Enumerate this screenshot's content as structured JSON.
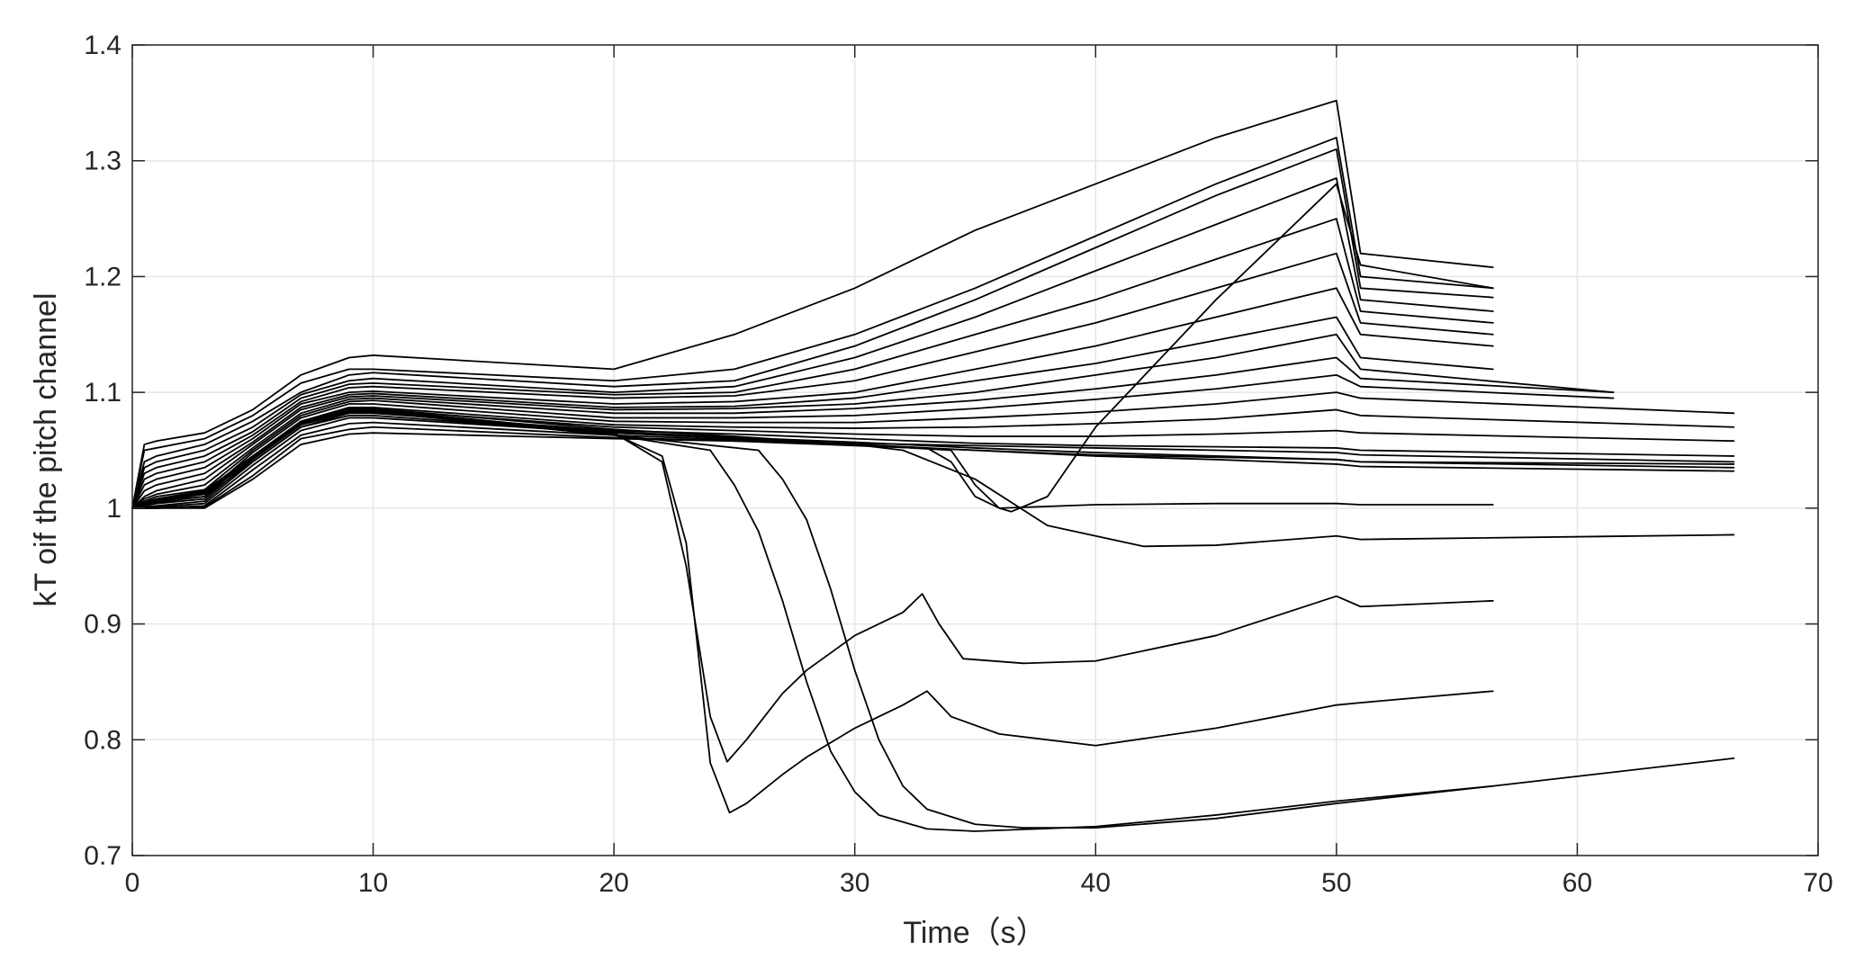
{
  "chart_data": {
    "type": "line",
    "title": "",
    "xlabel": "Time（s）",
    "ylabel": "kT oif the pitch channel",
    "xlim": [
      0,
      70
    ],
    "ylim": [
      0.7,
      1.4
    ],
    "x_ticks": [
      0,
      10,
      20,
      30,
      40,
      50,
      60,
      70
    ],
    "y_ticks": [
      0.7,
      0.8,
      0.9,
      1.0,
      1.1,
      1.2,
      1.3,
      1.4
    ],
    "x_tick_labels": [
      "0",
      "10",
      "20",
      "30",
      "40",
      "50",
      "60",
      "70"
    ],
    "y_tick_labels": [
      "0.7",
      "0.8",
      "0.9",
      "1",
      "1.1",
      "1.2",
      "1.3",
      "1.4"
    ],
    "grid": true,
    "line_color": "#000000",
    "grid_color": "#e6e6e6",
    "axis_color": "#262626",
    "series": [
      {
        "x": [
          0,
          0.5,
          1,
          3,
          5,
          7,
          9,
          10,
          20,
          25,
          30,
          35,
          40,
          45,
          50,
          51,
          56.5
        ],
        "y": [
          1.0,
          1.055,
          1.058,
          1.065,
          1.085,
          1.115,
          1.13,
          1.132,
          1.12,
          1.15,
          1.19,
          1.24,
          1.28,
          1.32,
          1.352,
          1.22,
          1.208
        ]
      },
      {
        "x": [
          0,
          0.5,
          1,
          3,
          5,
          7,
          9,
          10,
          20,
          25,
          30,
          35,
          40,
          45,
          50,
          51,
          56.5
        ],
        "y": [
          1.0,
          1.05,
          1.052,
          1.06,
          1.08,
          1.108,
          1.12,
          1.12,
          1.11,
          1.12,
          1.15,
          1.19,
          1.235,
          1.28,
          1.32,
          1.2,
          1.19
        ]
      },
      {
        "x": [
          0,
          0.5,
          1,
          3,
          5,
          7,
          9,
          10,
          20,
          25,
          30,
          35,
          40,
          45,
          50,
          51,
          56.5
        ],
        "y": [
          1.0,
          1.04,
          1.045,
          1.055,
          1.075,
          1.1,
          1.115,
          1.117,
          1.105,
          1.11,
          1.14,
          1.18,
          1.225,
          1.27,
          1.31,
          1.19,
          1.182
        ]
      },
      {
        "x": [
          0,
          0.5,
          1,
          3,
          5,
          7,
          9,
          10,
          20,
          25,
          30,
          35,
          40,
          45,
          50,
          51,
          56.5
        ],
        "y": [
          1.0,
          1.035,
          1.04,
          1.05,
          1.07,
          1.098,
          1.11,
          1.112,
          1.1,
          1.105,
          1.13,
          1.165,
          1.205,
          1.245,
          1.285,
          1.18,
          1.17
        ]
      },
      {
        "x": [
          0,
          0.5,
          1,
          3,
          5,
          7,
          9,
          10,
          20,
          25,
          30,
          35,
          40,
          45,
          50,
          51,
          56.5
        ],
        "y": [
          1.0,
          1.03,
          1.035,
          1.045,
          1.066,
          1.095,
          1.107,
          1.108,
          1.098,
          1.1,
          1.12,
          1.15,
          1.18,
          1.215,
          1.25,
          1.17,
          1.16
        ]
      },
      {
        "x": [
          0,
          0.5,
          1,
          3,
          5,
          7,
          9,
          10,
          20,
          25,
          30,
          35,
          40,
          45,
          50,
          51,
          56.5
        ],
        "y": [
          1.0,
          1.025,
          1.03,
          1.04,
          1.063,
          1.092,
          1.104,
          1.105,
          1.095,
          1.097,
          1.11,
          1.135,
          1.16,
          1.19,
          1.22,
          1.16,
          1.15
        ]
      },
      {
        "x": [
          0,
          0.5,
          1,
          3,
          5,
          7,
          9,
          10,
          20,
          25,
          30,
          35,
          40,
          45,
          50,
          51,
          56.5
        ],
        "y": [
          1.0,
          1.02,
          1.025,
          1.035,
          1.06,
          1.09,
          1.1,
          1.101,
          1.09,
          1.092,
          1.1,
          1.12,
          1.14,
          1.165,
          1.19,
          1.15,
          1.14
        ]
      },
      {
        "x": [
          0,
          0.5,
          1,
          3,
          5,
          7,
          9,
          10,
          20,
          25,
          30,
          35,
          40,
          45,
          50,
          51,
          56.5
        ],
        "y": [
          1.0,
          1.015,
          1.02,
          1.03,
          1.057,
          1.087,
          1.098,
          1.099,
          1.087,
          1.088,
          1.095,
          1.11,
          1.125,
          1.145,
          1.165,
          1.13,
          1.12
        ]
      },
      {
        "x": [
          0,
          0.5,
          1,
          3,
          5,
          7,
          9,
          10,
          20,
          25,
          30,
          35,
          40,
          45,
          50,
          51,
          61.5
        ],
        "y": [
          1.0,
          1.01,
          1.015,
          1.025,
          1.055,
          1.085,
          1.096,
          1.097,
          1.085,
          1.086,
          1.09,
          1.1,
          1.115,
          1.13,
          1.15,
          1.12,
          1.1
        ]
      },
      {
        "x": [
          0,
          0.5,
          1,
          3,
          5,
          7,
          9,
          10,
          20,
          25,
          30,
          35,
          40,
          45,
          50,
          51,
          61.5
        ],
        "y": [
          1.0,
          1.008,
          1.012,
          1.02,
          1.052,
          1.082,
          1.094,
          1.095,
          1.082,
          1.082,
          1.086,
          1.093,
          1.103,
          1.115,
          1.13,
          1.112,
          1.1
        ]
      },
      {
        "x": [
          0,
          0.5,
          1,
          3,
          5,
          7,
          9,
          10,
          20,
          25,
          30,
          35,
          40,
          45,
          50,
          51,
          61.5
        ],
        "y": [
          1.0,
          1.006,
          1.01,
          1.016,
          1.05,
          1.08,
          1.092,
          1.093,
          1.078,
          1.078,
          1.08,
          1.086,
          1.094,
          1.103,
          1.115,
          1.105,
          1.095
        ]
      },
      {
        "x": [
          0,
          0.5,
          1,
          3,
          5,
          7,
          9,
          10,
          20,
          25,
          30,
          35,
          40,
          45,
          50,
          51,
          66.5
        ],
        "y": [
          1.0,
          1.004,
          1.008,
          1.012,
          1.048,
          1.078,
          1.09,
          1.09,
          1.075,
          1.074,
          1.074,
          1.078,
          1.083,
          1.09,
          1.1,
          1.095,
          1.082
        ]
      },
      {
        "x": [
          0,
          0.5,
          1,
          3,
          5,
          7,
          9,
          10,
          20,
          25,
          30,
          35,
          40,
          45,
          50,
          51,
          66.5
        ],
        "y": [
          1.0,
          1.003,
          1.006,
          1.01,
          1.045,
          1.075,
          1.087,
          1.087,
          1.072,
          1.07,
          1.069,
          1.07,
          1.073,
          1.077,
          1.085,
          1.08,
          1.07
        ]
      },
      {
        "x": [
          0,
          0.5,
          1,
          3,
          5,
          7,
          9,
          10,
          20,
          25,
          30,
          35,
          40,
          45,
          50,
          51,
          66.5
        ],
        "y": [
          1.0,
          1.002,
          1.004,
          1.008,
          1.042,
          1.073,
          1.085,
          1.085,
          1.07,
          1.067,
          1.064,
          1.062,
          1.062,
          1.064,
          1.067,
          1.065,
          1.058
        ]
      },
      {
        "x": [
          0,
          0.5,
          1,
          3,
          5,
          7,
          9,
          10,
          20,
          25,
          30,
          35,
          40,
          45,
          50,
          51,
          66.5
        ],
        "y": [
          1.0,
          1.001,
          1.002,
          1.006,
          1.04,
          1.07,
          1.082,
          1.082,
          1.067,
          1.064,
          1.06,
          1.056,
          1.054,
          1.053,
          1.052,
          1.05,
          1.045
        ]
      },
      {
        "x": [
          0,
          0.5,
          1,
          3,
          5,
          7,
          9,
          10,
          20,
          25,
          30,
          35,
          40,
          45,
          50,
          51,
          66.5
        ],
        "y": [
          1.0,
          1.0,
          1.001,
          1.004,
          1.037,
          1.067,
          1.078,
          1.078,
          1.065,
          1.061,
          1.057,
          1.052,
          1.048,
          1.045,
          1.042,
          1.04,
          1.035
        ]
      },
      {
        "x": [
          0,
          0.5,
          1,
          3,
          5,
          7,
          9,
          10,
          20,
          25,
          30,
          35,
          40,
          45,
          50,
          51,
          66.5
        ],
        "y": [
          1.0,
          1.0,
          1.0,
          1.002,
          1.033,
          1.063,
          1.073,
          1.074,
          1.063,
          1.059,
          1.055,
          1.05,
          1.045,
          1.042,
          1.038,
          1.036,
          1.032
        ]
      },
      {
        "x": [
          0,
          0.5,
          1,
          3,
          5,
          7,
          9,
          10,
          20,
          25,
          30,
          35,
          40,
          45,
          50,
          51,
          66.5
        ],
        "y": [
          1.0,
          1.0,
          1.0,
          1.001,
          1.028,
          1.06,
          1.068,
          1.07,
          1.061,
          1.058,
          1.054,
          1.05,
          1.046,
          1.044,
          1.042,
          1.04,
          1.038
        ]
      },
      {
        "x": [
          0,
          0.5,
          1,
          3,
          5,
          7,
          9,
          10,
          20,
          25,
          30,
          35,
          40,
          45,
          50,
          51,
          66.5
        ],
        "y": [
          1.0,
          1.0,
          1.0,
          1.0,
          1.025,
          1.055,
          1.064,
          1.065,
          1.06,
          1.058,
          1.056,
          1.054,
          1.052,
          1.05,
          1.048,
          1.046,
          1.04
        ]
      },
      {
        "x": [
          0,
          0.5,
          1,
          3,
          5,
          7,
          9,
          10,
          20,
          25,
          30,
          34,
          35,
          36,
          36.5,
          38,
          40,
          45,
          50,
          51,
          56.5
        ],
        "y": [
          1.0,
          1.002,
          1.005,
          1.01,
          1.04,
          1.07,
          1.08,
          1.08,
          1.065,
          1.06,
          1.055,
          1.05,
          1.02,
          1.0,
          0.997,
          1.01,
          1.07,
          1.18,
          1.28,
          1.21,
          1.19
        ]
      },
      {
        "x": [
          0,
          0.5,
          1,
          3,
          5,
          7,
          9,
          10,
          20,
          25,
          30,
          33,
          34,
          35,
          36,
          40,
          45,
          50,
          51,
          56.5
        ],
        "y": [
          1.0,
          1.003,
          1.006,
          1.012,
          1.042,
          1.072,
          1.083,
          1.083,
          1.066,
          1.061,
          1.055,
          1.052,
          1.04,
          1.01,
          1.0,
          1.003,
          1.004,
          1.004,
          1.003,
          1.003
        ]
      },
      {
        "x": [
          0,
          0.5,
          1,
          3,
          5,
          7,
          9,
          10,
          20,
          25,
          30,
          32,
          35,
          38,
          42,
          45,
          50,
          51,
          66.5
        ],
        "y": [
          1.0,
          1.004,
          1.007,
          1.014,
          1.045,
          1.075,
          1.086,
          1.086,
          1.068,
          1.062,
          1.055,
          1.05,
          1.025,
          0.985,
          0.967,
          0.968,
          0.976,
          0.973,
          0.977
        ]
      },
      {
        "x": [
          0,
          0.5,
          1,
          3,
          5,
          7,
          9,
          10,
          20,
          22,
          23,
          24,
          24.7,
          25.5,
          27,
          28,
          30,
          32,
          32.8,
          33.5,
          34.5,
          37,
          40,
          45,
          50,
          51,
          56.5
        ],
        "y": [
          1.0,
          1.005,
          1.008,
          1.015,
          1.045,
          1.074,
          1.085,
          1.085,
          1.065,
          1.04,
          0.95,
          0.82,
          0.781,
          0.8,
          0.84,
          0.86,
          0.89,
          0.91,
          0.926,
          0.9,
          0.87,
          0.866,
          0.868,
          0.89,
          0.924,
          0.915,
          0.92
        ]
      },
      {
        "x": [
          0,
          0.5,
          1,
          3,
          5,
          7,
          9,
          10,
          20,
          22,
          23,
          24,
          24.8,
          25.5,
          27,
          28,
          30,
          32,
          33,
          34,
          36,
          40,
          45,
          50,
          51,
          56.5
        ],
        "y": [
          1.0,
          1.005,
          1.008,
          1.014,
          1.044,
          1.073,
          1.084,
          1.084,
          1.064,
          1.045,
          0.97,
          0.78,
          0.737,
          0.745,
          0.77,
          0.785,
          0.81,
          0.83,
          0.842,
          0.82,
          0.805,
          0.795,
          0.81,
          0.83,
          0.832,
          0.842
        ]
      },
      {
        "x": [
          0,
          0.5,
          1,
          3,
          5,
          7,
          9,
          10,
          20,
          24,
          25,
          26,
          27,
          28,
          29,
          30,
          31,
          33,
          35,
          40,
          45,
          50,
          56.5,
          66.5
        ],
        "y": [
          1.0,
          1.004,
          1.007,
          1.013,
          1.043,
          1.072,
          1.083,
          1.083,
          1.063,
          1.05,
          1.02,
          0.98,
          0.92,
          0.85,
          0.79,
          0.755,
          0.735,
          0.723,
          0.721,
          0.725,
          0.735,
          0.747,
          0.76,
          0.784
        ]
      },
      {
        "x": [
          0,
          0.5,
          1,
          3,
          5,
          7,
          9,
          10,
          20,
          26,
          27,
          28,
          29,
          30,
          31,
          32,
          33,
          35,
          37,
          40,
          45,
          50,
          56.5
        ],
        "y": [
          1.0,
          1.004,
          1.007,
          1.013,
          1.043,
          1.072,
          1.083,
          1.083,
          1.063,
          1.05,
          1.025,
          0.99,
          0.93,
          0.86,
          0.8,
          0.76,
          0.74,
          0.727,
          0.724,
          0.724,
          0.732,
          0.745,
          0.76
        ]
      }
    ]
  }
}
